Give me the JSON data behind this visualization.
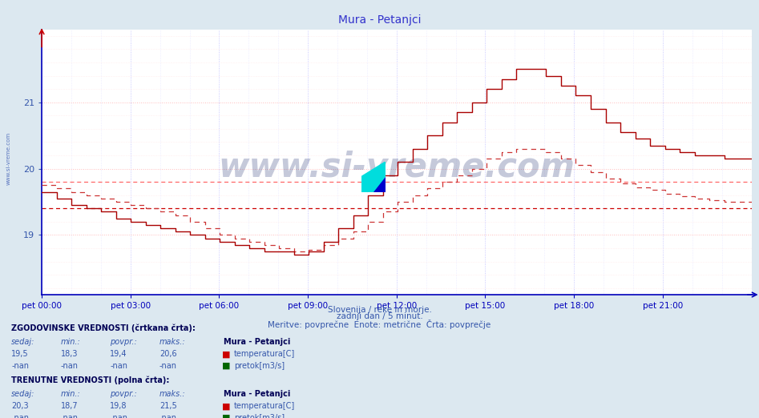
{
  "title": "Mura - Petanjci",
  "title_color": "#3333cc",
  "bg_color": "#dce8f0",
  "plot_bg_color": "#ffffff",
  "line_solid_color": "#aa0000",
  "line_dashed_color": "#cc3333",
  "axis_color": "#0000bb",
  "tick_label_color": "#3355aa",
  "yticks": [
    19,
    20,
    21
  ],
  "ymin": 18.1,
  "ymax": 22.1,
  "xtick_labels": [
    "pet 00:00",
    "pet 03:00",
    "pet 06:00",
    "pet 09:00",
    "pet 12:00",
    "pet 15:00",
    "pet 18:00",
    "pet 21:00"
  ],
  "subtitle1": "Slovenija / reke in morje.",
  "subtitle2": "zadnji dan / 5 minut.",
  "subtitle3": "Meritve: povprečne  Enote: metrične  Črta: povprečje",
  "subtitle_color": "#3355aa",
  "watermark": "www.si-vreme.com",
  "section1_title": "ZGODOVINSKE VREDNOSTI (črtkana črta):",
  "section2_title": "TRENUTNE VREDNOSTI (polna črta):",
  "hist_sedaj": "19,5",
  "hist_min": "18,3",
  "hist_povpr": "19,4",
  "hist_maks": "20,6",
  "curr_sedaj": "20,3",
  "curr_min": "18,7",
  "curr_povpr": "19,8",
  "curr_maks": "21,5",
  "station": "Mura - Petanjci",
  "legend_temp": "temperatura[C]",
  "legend_pretok": "pretok[m3/s]",
  "hist_avg": 19.4,
  "curr_avg": 19.8,
  "ref_color_solid": "#cc0000",
  "ref_color_dotted": "#ff6666",
  "major_grid_color": "#ffbbbb",
  "minor_grid_color": "#ffe0e0",
  "major_vgrid_color": "#bbbbff",
  "minor_vgrid_color": "#ddddff"
}
